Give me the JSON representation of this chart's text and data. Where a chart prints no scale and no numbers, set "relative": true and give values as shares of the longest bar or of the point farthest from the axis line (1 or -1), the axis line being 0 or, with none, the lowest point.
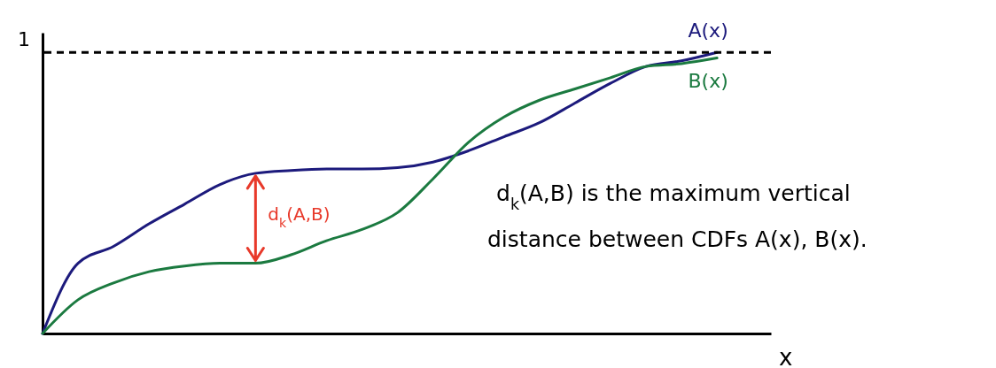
{
  "chart_data": {
    "type": "line",
    "relative": true,
    "xlabel": "x",
    "grid": false,
    "categories": [
      null,
      null,
      null,
      null,
      null,
      null,
      null,
      null,
      null,
      null,
      null,
      null,
      null,
      null,
      null,
      null,
      null,
      null,
      null,
      null
    ],
    "series": [
      {
        "name": "A(x)",
        "color": "#1c1a7c",
        "values": [
          0,
          0.25,
          0.31,
          0.39,
          0.46,
          0.53,
          0.57,
          0.58,
          0.585,
          0.585,
          0.59,
          0.61,
          0.65,
          0.7,
          0.75,
          0.82,
          0.89,
          0.95,
          0.97,
          1
        ]
      },
      {
        "name": "B(x)",
        "color": "#1b7a40",
        "values": [
          0,
          0.12,
          0.18,
          0.22,
          0.24,
          0.25,
          0.25,
          0.28,
          0.33,
          0.37,
          0.43,
          0.55,
          0.68,
          0.77,
          0.83,
          0.87,
          0.91,
          0.95,
          0.96,
          0.98
        ]
      }
    ],
    "ref_lines": [
      {
        "axis": "y",
        "value": 1,
        "label": "1",
        "line_style": "dashed",
        "color": "#000000"
      }
    ],
    "annotations": [
      "d$_{k}$(A,B)",
      "d$_{k}$(A,B) is the maximum vertical distance between CDFs A(x), B(x)."
    ]
  }
}
